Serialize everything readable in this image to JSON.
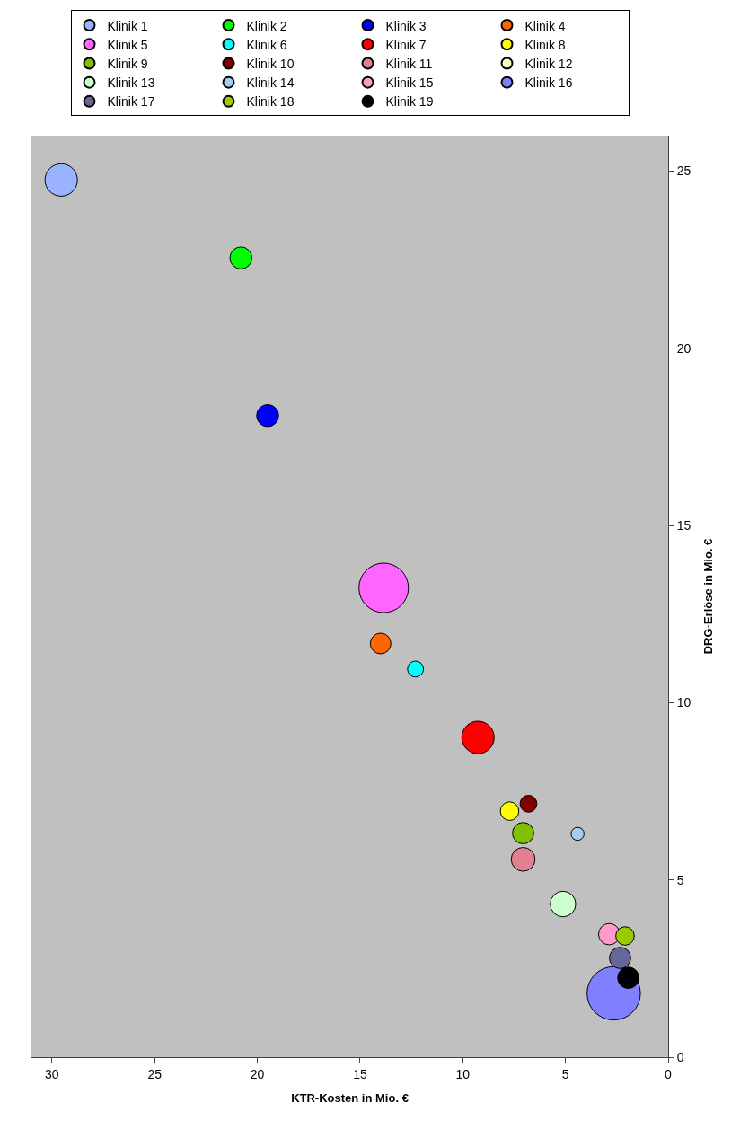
{
  "chart_data": {
    "type": "bubble",
    "xlabel": "KTR-Kosten in Mio. €",
    "ylabel": "DRG-Erlöse in Mio. €",
    "xlim": [
      31,
      0
    ],
    "xticks": [
      30,
      25,
      20,
      15,
      10,
      5,
      0
    ],
    "ylim": [
      0,
      26
    ],
    "yticks": [
      0,
      5,
      10,
      15,
      20,
      25
    ],
    "grid": false,
    "legend": "top",
    "marker": "circle",
    "series": [
      {
        "name": "Klinik 1",
        "color": "#99b3ff",
        "x": [
          29.55
        ],
        "values": [
          24.75
        ],
        "sizes": [
          0.37
        ]
      },
      {
        "name": "Klinik 2",
        "color": "#00ff00",
        "x": [
          20.8
        ],
        "values": [
          22.55
        ],
        "sizes": [
          0.17
        ]
      },
      {
        "name": "Klinik 3",
        "color": "#0000ff",
        "x": [
          19.5
        ],
        "values": [
          18.1
        ],
        "sizes": [
          0.17
        ]
      },
      {
        "name": "Klinik 4",
        "color": "#ff6600",
        "x": [
          14.0
        ],
        "values": [
          11.67
        ],
        "sizes": [
          0.15
        ]
      },
      {
        "name": "Klinik 5",
        "color": "#ff66ff",
        "x": [
          13.85
        ],
        "values": [
          13.24
        ],
        "sizes": [
          0.86
        ]
      },
      {
        "name": "Klinik 6",
        "color": "#00ffff",
        "x": [
          12.3
        ],
        "values": [
          10.95
        ],
        "sizes": [
          0.09
        ]
      },
      {
        "name": "Klinik 7",
        "color": "#ff0000",
        "x": [
          9.26
        ],
        "values": [
          9.02
        ],
        "sizes": [
          0.37
        ]
      },
      {
        "name": "Klinik 8",
        "color": "#ffff00",
        "x": [
          7.72
        ],
        "values": [
          6.94
        ],
        "sizes": [
          0.12
        ]
      },
      {
        "name": "Klinik 9",
        "color": "#80c000",
        "x": [
          7.06
        ],
        "values": [
          6.32
        ],
        "sizes": [
          0.16
        ]
      },
      {
        "name": "Klinik 10",
        "color": "#800000",
        "x": [
          6.8
        ],
        "values": [
          7.15
        ],
        "sizes": [
          0.1
        ]
      },
      {
        "name": "Klinik 11",
        "color": "#e08090",
        "x": [
          7.06
        ],
        "values": [
          5.58
        ],
        "sizes": [
          0.2
        ]
      },
      {
        "name": "Klinik 12",
        "color": "#ffffcc",
        "x": [
          null
        ],
        "values": [
          null
        ],
        "sizes": [
          null
        ]
      },
      {
        "name": "Klinik 13",
        "color": "#ccffcc",
        "x": [
          5.12
        ],
        "values": [
          4.32
        ],
        "sizes": [
          0.23
        ]
      },
      {
        "name": "Klinik 14",
        "color": "#a6caf0",
        "x": [
          4.41
        ],
        "values": [
          6.3
        ],
        "sizes": [
          0.06
        ]
      },
      {
        "name": "Klinik 15",
        "color": "#ff99cc",
        "x": [
          2.87
        ],
        "values": [
          3.47
        ],
        "sizes": [
          0.16
        ]
      },
      {
        "name": "Klinik 16",
        "color": "#8080ff",
        "x": [
          2.65
        ],
        "values": [
          1.8
        ],
        "sizes": [
          1
        ]
      },
      {
        "name": "Klinik 17",
        "color": "#666699",
        "x": [
          2.34
        ],
        "values": [
          2.8
        ],
        "sizes": [
          0.16
        ]
      },
      {
        "name": "Klinik 18",
        "color": "#99cc00",
        "x": [
          2.1
        ],
        "values": [
          3.42
        ],
        "sizes": [
          0.12
        ]
      },
      {
        "name": "Klinik 19",
        "color": "#000000",
        "x": [
          1.94
        ],
        "values": [
          2.24
        ],
        "sizes": [
          0.16
        ]
      }
    ]
  }
}
